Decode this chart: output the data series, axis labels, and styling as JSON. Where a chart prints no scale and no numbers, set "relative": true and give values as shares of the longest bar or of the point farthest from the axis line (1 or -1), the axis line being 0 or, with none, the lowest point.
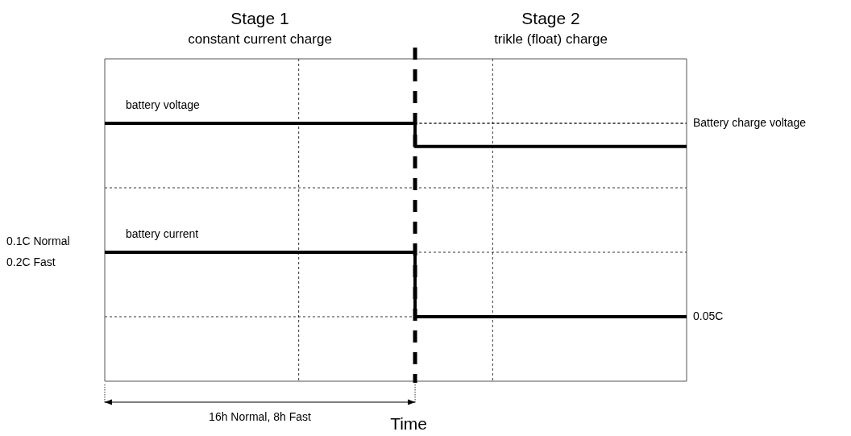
{
  "chart_data": {
    "type": "step",
    "relative": true,
    "xlabel": "Time",
    "categories": [
      null,
      null,
      null,
      null,
      null,
      null,
      null,
      null,
      null,
      null,
      null,
      null,
      null,
      null,
      null,
      null
    ],
    "grid": true,
    "legend": false,
    "line_style": "solid",
    "marker": "none",
    "series": [
      {
        "name": "battery voltage",
        "color": "#000000",
        "values": [
          1,
          1,
          1,
          1,
          1,
          1,
          1,
          1,
          0.91,
          0.91,
          0.91,
          0.91,
          0.91,
          0.91,
          0.91,
          0.91
        ]
      },
      {
        "name": "battery current",
        "color": "#000000",
        "values": [
          0.5,
          0.5,
          0.5,
          0.5,
          0.5,
          0.5,
          0.5,
          0.5,
          0.25,
          0.25,
          0.25,
          0.25,
          0.25,
          0.25,
          0.25,
          0.25
        ]
      }
    ],
    "annotations": [
      "Stage 1\nconstant current charge",
      "Stage 2\ntrikle (float) charge",
      "Battery charge voltage",
      "0.1C Normal\n0.2C Fast",
      "0.05C",
      "16h Normal, 8h Fast"
    ]
  }
}
